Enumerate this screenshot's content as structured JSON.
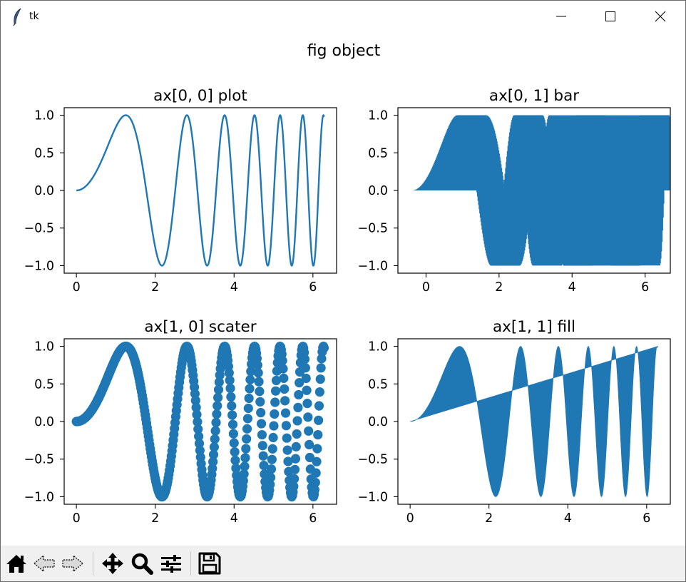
{
  "window": {
    "title": "tk"
  },
  "figure": {
    "suptitle": "fig object"
  },
  "colors": {
    "series": "#1f77b4"
  },
  "toolbar": {
    "icons": [
      "home-icon",
      "back-icon",
      "forward-icon",
      "pan-icon",
      "zoom-icon",
      "configure-subplots-icon",
      "save-icon"
    ]
  },
  "chart_data": [
    {
      "type": "line",
      "title": "ax[0, 0] plot",
      "function": "y = sin(x^2)",
      "x_range": [
        0,
        6.283
      ],
      "xlim": [
        -0.31,
        6.6
      ],
      "ylim": [
        -1.1,
        1.1
      ],
      "xticks": [
        0,
        2,
        4,
        6
      ],
      "xtick_labels": [
        "0",
        "2",
        "4",
        "6"
      ],
      "yticks": [
        1.0,
        0.5,
        0.0,
        -0.5,
        -1.0
      ],
      "ytick_labels": [
        "1.0",
        "0.5",
        "0.0",
        "−0.5",
        "−1.0"
      ],
      "grid": false
    },
    {
      "type": "bar",
      "title": "ax[0, 1] bar",
      "function": "height = sin(x^2)",
      "x_range": [
        0,
        6.283
      ],
      "bar_width": 0.8,
      "xlim": [
        -0.77,
        6.69
      ],
      "ylim": [
        -1.1,
        1.1
      ],
      "xticks": [
        0,
        2,
        4,
        6
      ],
      "xtick_labels": [
        "0",
        "2",
        "4",
        "6"
      ],
      "yticks": [
        1.0,
        0.5,
        0.0,
        -0.5,
        -1.0
      ],
      "ytick_labels": [
        "1.0",
        "0.5",
        "0.0",
        "−0.5",
        "−1.0"
      ],
      "grid": false
    },
    {
      "type": "scatter",
      "title": "ax[1, 0] scater",
      "function": "y = sin(x^2)",
      "x_range": [
        0,
        6.283
      ],
      "points": 400,
      "xlim": [
        -0.31,
        6.6
      ],
      "ylim": [
        -1.1,
        1.1
      ],
      "xticks": [
        0,
        2,
        4,
        6
      ],
      "xtick_labels": [
        "0",
        "2",
        "4",
        "6"
      ],
      "yticks": [
        1.0,
        0.5,
        0.0,
        -0.5,
        -1.0
      ],
      "ytick_labels": [
        "1.0",
        "0.5",
        "0.0",
        "−0.5",
        "−1.0"
      ],
      "grid": false
    },
    {
      "type": "area",
      "title": "ax[1, 1] fill",
      "function": "fill between y = sin(x^2) and y = x / (2π)",
      "x_range": [
        0,
        6.283
      ],
      "xlim": [
        -0.31,
        6.6
      ],
      "ylim": [
        -1.1,
        1.1
      ],
      "xticks": [
        0,
        2,
        4,
        6
      ],
      "xtick_labels": [
        "0",
        "2",
        "4",
        "6"
      ],
      "yticks": [
        1.0,
        0.5,
        0.0,
        -0.5,
        -1.0
      ],
      "ytick_labels": [
        "1.0",
        "0.5",
        "0.0",
        "−0.5",
        "−1.0"
      ],
      "grid": false
    }
  ]
}
